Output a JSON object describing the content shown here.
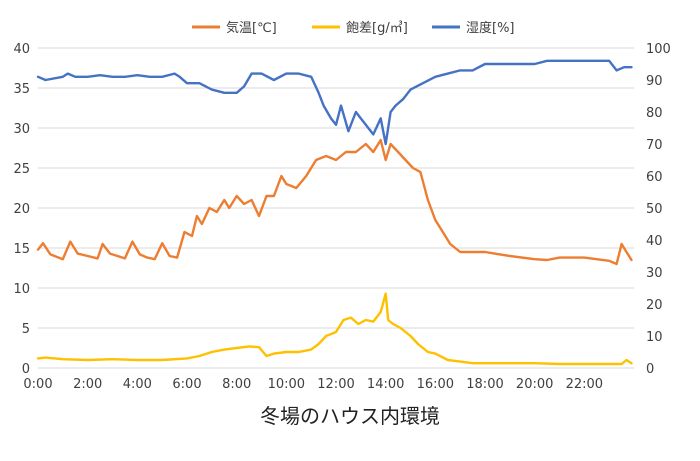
{
  "caption": "冬場のハウス内環境",
  "chart_data": {
    "type": "line",
    "title": "",
    "xlabel": "",
    "ylabel": "",
    "y2label": "",
    "x_ticks": [
      "0:00",
      "2:00",
      "4:00",
      "6:00",
      "8:00",
      "10:00",
      "12:00",
      "14:00",
      "16:00",
      "18:00",
      "20:00",
      "22:00"
    ],
    "ylim": [
      0,
      40
    ],
    "y_ticks": [
      0,
      5,
      10,
      15,
      20,
      25,
      30,
      35,
      40
    ],
    "y2lim": [
      0,
      100
    ],
    "y2_ticks": [
      0,
      10,
      20,
      30,
      40,
      50,
      60,
      70,
      80,
      90,
      100
    ],
    "grid": true,
    "legend_position": "top",
    "series": [
      {
        "name": "気温[℃]",
        "axis": "left",
        "color": "#ed7d31",
        "x": [
          0,
          0.2,
          0.5,
          1.0,
          1.3,
          1.6,
          2.0,
          2.4,
          2.6,
          2.9,
          3.2,
          3.5,
          3.8,
          4.1,
          4.4,
          4.7,
          5.0,
          5.3,
          5.6,
          5.9,
          6.2,
          6.4,
          6.6,
          6.9,
          7.2,
          7.5,
          7.7,
          8.0,
          8.3,
          8.6,
          8.9,
          9.2,
          9.5,
          9.8,
          10.0,
          10.4,
          10.8,
          11.2,
          11.6,
          12.0,
          12.4,
          12.8,
          13.2,
          13.5,
          13.8,
          14.0,
          14.2,
          14.5,
          14.8,
          15.1,
          15.4,
          15.7,
          16.0,
          16.3,
          16.6,
          17.0,
          17.5,
          18.0,
          19.0,
          20.0,
          20.5,
          21.0,
          22.0,
          23.0,
          23.3,
          23.5,
          23.7,
          23.9
        ],
        "values": [
          14.8,
          15.6,
          14.2,
          13.6,
          15.8,
          14.3,
          14.0,
          13.7,
          15.5,
          14.3,
          14.0,
          13.7,
          15.8,
          14.2,
          13.8,
          13.6,
          15.6,
          14.0,
          13.8,
          17.0,
          16.5,
          19.0,
          18.0,
          20.0,
          19.5,
          21.0,
          20.0,
          21.5,
          20.5,
          21.0,
          19.0,
          21.5,
          21.5,
          24.0,
          23.0,
          22.5,
          24.0,
          26.0,
          26.5,
          26.0,
          27.0,
          27.0,
          28.0,
          27.0,
          28.5,
          26.0,
          28.0,
          27.0,
          26.0,
          25.0,
          24.5,
          21.0,
          18.5,
          17.0,
          15.5,
          14.5,
          14.5,
          14.5,
          14.0,
          13.6,
          13.5,
          13.8,
          13.8,
          13.4,
          13.0,
          15.5,
          14.5,
          13.5
        ]
      },
      {
        "name": "飽差[g/㎥]",
        "axis": "left",
        "color": "#ffc000",
        "x": [
          0,
          0.3,
          1.0,
          2.0,
          3.0,
          4.0,
          5.0,
          6.0,
          6.5,
          7.0,
          7.5,
          8.0,
          8.5,
          8.9,
          9.2,
          9.5,
          10.0,
          10.5,
          11.0,
          11.3,
          11.6,
          12.0,
          12.3,
          12.6,
          12.9,
          13.2,
          13.5,
          13.8,
          14.0,
          14.1,
          14.3,
          14.6,
          15.0,
          15.3,
          15.7,
          16.0,
          16.5,
          17.0,
          17.5,
          18.0,
          19.0,
          20.0,
          21.0,
          22.0,
          23.0,
          23.5,
          23.7,
          23.9
        ],
        "values": [
          1.2,
          1.3,
          1.1,
          1.0,
          1.1,
          1.0,
          1.0,
          1.2,
          1.5,
          2.0,
          2.3,
          2.5,
          2.7,
          2.6,
          1.5,
          1.8,
          2.0,
          2.0,
          2.3,
          3.0,
          4.0,
          4.5,
          6.0,
          6.3,
          5.5,
          6.0,
          5.8,
          7.0,
          9.3,
          6.0,
          5.5,
          5.0,
          4.0,
          3.0,
          2.0,
          1.8,
          1.0,
          0.8,
          0.6,
          0.6,
          0.6,
          0.6,
          0.5,
          0.5,
          0.5,
          0.5,
          1.0,
          0.6
        ]
      },
      {
        "name": "湿度[%]",
        "axis": "right",
        "color": "#4472c4",
        "x": [
          0,
          0.3,
          1.0,
          1.2,
          1.5,
          2.0,
          2.5,
          3.0,
          3.5,
          4.0,
          4.5,
          5.0,
          5.5,
          5.7,
          6.0,
          6.5,
          7.0,
          7.5,
          8.0,
          8.3,
          8.6,
          8.8,
          9.0,
          9.5,
          10.0,
          10.5,
          11.0,
          11.3,
          11.5,
          11.8,
          12.0,
          12.2,
          12.5,
          12.8,
          13.0,
          13.2,
          13.5,
          13.8,
          14.0,
          14.2,
          14.4,
          14.7,
          15.0,
          15.5,
          16.0,
          16.5,
          17.0,
          17.5,
          18.0,
          19.0,
          20.0,
          20.5,
          21.0,
          22.0,
          23.0,
          23.3,
          23.6,
          23.9
        ],
        "values": [
          91,
          90,
          91,
          92,
          91,
          91,
          91.5,
          91,
          91,
          91.5,
          91,
          91,
          92,
          91,
          89,
          89,
          87,
          86,
          86,
          88,
          92,
          92,
          92,
          90,
          92,
          92,
          91,
          86,
          82,
          78,
          76,
          82,
          74,
          80,
          78,
          76,
          73,
          78,
          70,
          80,
          82,
          84,
          87,
          89,
          91,
          92,
          93,
          93,
          95,
          95,
          95,
          96,
          96,
          96,
          96,
          93,
          94,
          94
        ]
      }
    ]
  }
}
